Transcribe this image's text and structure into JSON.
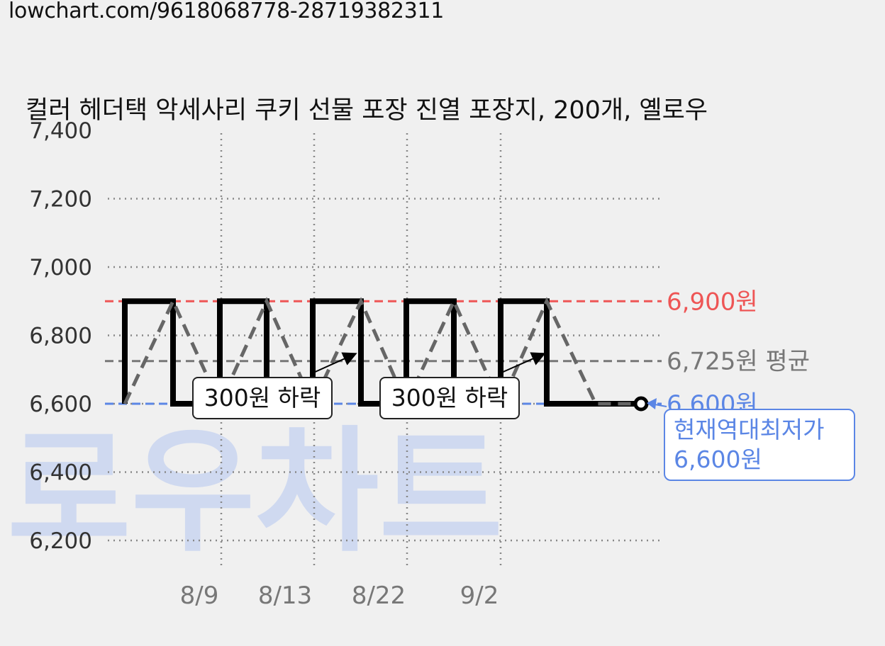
{
  "url": "lowchart.com/9618068778-28719382311",
  "watermark": "로우차트",
  "chart_data": {
    "type": "line",
    "title": "컬러 헤더택 악세사리 쿠키 선물 포장 진열 포장지, 200개, 옐로우",
    "ylim": [
      6200,
      7400
    ],
    "y_ticks": [
      "7,400",
      "7,200",
      "7,000",
      "6,800",
      "6,600",
      "6,400",
      "6,200"
    ],
    "y_tick_values": [
      7400,
      7200,
      7000,
      6800,
      6600,
      6400,
      6200
    ],
    "x_tick_labels": [
      "8/9",
      "8/13",
      "8/22",
      "9/2"
    ],
    "grid": true,
    "series": [
      {
        "style": "solid-step",
        "color": "#000000",
        "values": [
          6600,
          6900,
          6900,
          6600,
          6600,
          6900,
          6900,
          6600,
          6600,
          6900,
          6900,
          6600,
          6600,
          6900,
          6900,
          6600,
          6600,
          6900,
          6900,
          6600,
          6600,
          6600
        ]
      },
      {
        "style": "dashed",
        "color": "#666666",
        "values": [
          6600,
          6900,
          6600,
          6900,
          6600,
          6900,
          6600,
          6900,
          6600,
          6900,
          6600,
          6600
        ]
      }
    ],
    "reference_lines": [
      {
        "value": 6900,
        "label": "6,900원",
        "color": "#ee5555"
      },
      {
        "value": 6725,
        "label": "6,725원 평균",
        "color": "#777777"
      },
      {
        "value": 6600,
        "label": "6,600원",
        "color": "#5b86e5"
      }
    ],
    "annotations": [
      {
        "text": "300원 하락"
      },
      {
        "text": "300원 하락"
      }
    ],
    "current": {
      "line1": "현재역대최저가",
      "line2": "6,600원",
      "value": 6600
    }
  }
}
